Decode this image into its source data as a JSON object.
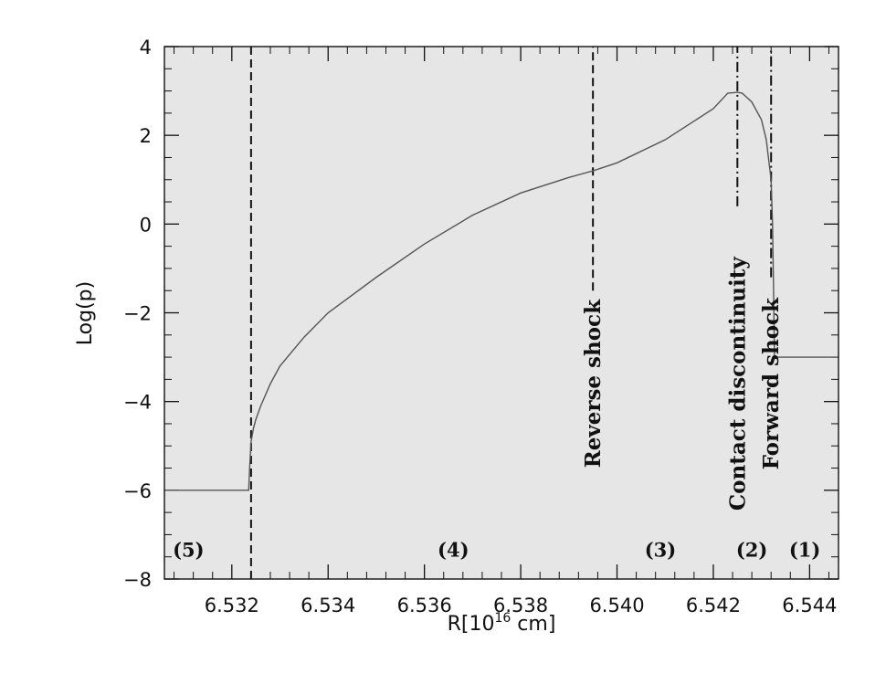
{
  "chart_data": {
    "type": "line",
    "xlabel": "R[10",
    "xlabel_sup": "16",
    "xlabel_end": " cm]",
    "ylabel": "Log(p)",
    "xlim": [
      6.5306,
      6.5446
    ],
    "ylim": [
      -8,
      4
    ],
    "x_ticks": [
      6.532,
      6.534,
      6.536,
      6.538,
      6.54,
      6.542,
      6.544
    ],
    "x_tick_labels": [
      "6.532",
      "6.534",
      "6.536",
      "6.538",
      "6.540",
      "6.542",
      "6.544"
    ],
    "y_ticks": [
      -8,
      -6,
      -4,
      -2,
      0,
      2,
      4
    ],
    "y_tick_labels": [
      "−8",
      "−6",
      "−4",
      "−2",
      "0",
      "2",
      "4"
    ],
    "background": "#e6e6e6",
    "series": [
      {
        "x": [
          6.5306,
          6.53235,
          6.53237,
          6.5324,
          6.53245,
          6.5325,
          6.5326,
          6.5328,
          6.533,
          6.5335,
          6.534,
          6.535,
          6.536,
          6.537,
          6.538,
          6.539,
          6.5395,
          6.54,
          6.541,
          6.542,
          6.5423,
          6.5425,
          6.5426,
          6.5428,
          6.543,
          6.5431,
          6.5432,
          6.54323,
          6.54325,
          6.54327,
          6.5433,
          6.5446
        ],
        "y": [
          -6.0,
          -6.0,
          -5.5,
          -4.9,
          -4.6,
          -4.4,
          -4.1,
          -3.6,
          -3.2,
          -2.55,
          -2.0,
          -1.2,
          -0.45,
          0.2,
          0.7,
          1.05,
          1.2,
          1.38,
          1.9,
          2.6,
          2.95,
          2.97,
          2.95,
          2.75,
          2.35,
          1.9,
          1.0,
          0.0,
          -1.4,
          -3.0,
          -3.0,
          -3.0
        ],
        "color": "#555555"
      }
    ],
    "vlines": [
      {
        "x": 6.5324,
        "style": "dashed",
        "y_from": -8,
        "y_to": 4
      },
      {
        "x": 6.5395,
        "style": "dashed",
        "y_from": -1.5,
        "y_to": 4
      },
      {
        "x": 6.5425,
        "style": "dashdot",
        "y_from": 0.4,
        "y_to": 4
      },
      {
        "x": 6.5432,
        "style": "dashdot",
        "y_from": -1.2,
        "y_to": 4
      }
    ],
    "annotations": [
      {
        "text": "Reverse shock",
        "x": 6.5395,
        "y": -3.6
      },
      {
        "text": "Contact discontinuity",
        "x": 6.5425,
        "y": -3.6
      },
      {
        "text": "Forward shock",
        "x": 6.5432,
        "y": -3.6
      }
    ],
    "regions": [
      {
        "text": "(5)",
        "x": 6.5311,
        "y": -7.5
      },
      {
        "text": "(4)",
        "x": 6.5366,
        "y": -7.5
      },
      {
        "text": "(3)",
        "x": 6.5409,
        "y": -7.5
      },
      {
        "text": "(2)",
        "x": 6.5428,
        "y": -7.5
      },
      {
        "text": "(1)",
        "x": 6.5439,
        "y": -7.5
      }
    ]
  }
}
